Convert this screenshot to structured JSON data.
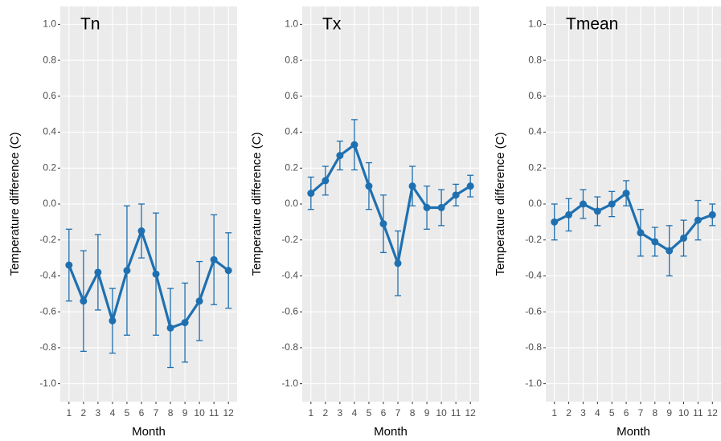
{
  "chart_data": [
    {
      "type": "line",
      "title": "Tn",
      "color": "#1f70b0",
      "grid": true,
      "categories": [
        "1",
        "2",
        "3",
        "4",
        "5",
        "6",
        "7",
        "8",
        "9",
        "10",
        "11",
        "12"
      ],
      "values": [
        -0.34,
        -0.54,
        -0.38,
        -0.65,
        -0.37,
        -0.15,
        -0.39,
        -0.69,
        -0.66,
        -0.54,
        -0.31,
        -0.37
      ],
      "errors": [
        0.2,
        0.28,
        0.21,
        0.18,
        0.36,
        0.15,
        0.34,
        0.22,
        0.22,
        0.22,
        0.25,
        0.21
      ],
      "xlabel": "Month",
      "ylabel": "Temperature difference (C)",
      "ylim": [
        -1.1,
        1.1
      ],
      "yticks": [
        {
          "value": -1,
          "label": "-1.0"
        },
        -0.8,
        -0.6,
        -0.4,
        -0.2,
        {
          "value": 0,
          "label": "0.0"
        },
        0.2,
        0.4,
        0.6,
        0.8,
        {
          "value": 1,
          "label": "1.0"
        }
      ]
    },
    {
      "type": "line",
      "title": "Tx",
      "color": "#1f70b0",
      "grid": true,
      "categories": [
        "1",
        "2",
        "3",
        "4",
        "5",
        "6",
        "7",
        "8",
        "9",
        "10",
        "11",
        "12"
      ],
      "values": [
        0.06,
        0.13,
        0.27,
        0.33,
        0.1,
        -0.11,
        -0.33,
        0.1,
        -0.02,
        -0.02,
        0.05,
        0.1
      ],
      "errors": [
        0.09,
        0.08,
        0.08,
        0.14,
        0.13,
        0.16,
        0.18,
        0.11,
        0.12,
        0.1,
        0.06,
        0.06
      ],
      "xlabel": "Month",
      "ylabel": "Temperature difference (C)",
      "ylim": [
        -1.1,
        1.1
      ],
      "yticks": [
        {
          "value": -1,
          "label": "-1.0"
        },
        -0.8,
        -0.6,
        -0.4,
        -0.2,
        {
          "value": 0,
          "label": "0.0"
        },
        0.2,
        0.4,
        0.6,
        0.8,
        {
          "value": 1,
          "label": "1.0"
        }
      ]
    },
    {
      "type": "line",
      "title": "Tmean",
      "color": "#1f70b0",
      "grid": true,
      "categories": [
        "1",
        "2",
        "3",
        "4",
        "5",
        "6",
        "7",
        "8",
        "9",
        "10",
        "11",
        "12"
      ],
      "values": [
        -0.1,
        -0.06,
        0.0,
        -0.04,
        0.0,
        0.06,
        -0.16,
        -0.21,
        -0.26,
        -0.19,
        -0.09,
        -0.06
      ],
      "errors": [
        0.1,
        0.09,
        0.08,
        0.08,
        0.07,
        0.07,
        0.13,
        0.08,
        0.14,
        0.1,
        0.11,
        0.06
      ],
      "xlabel": "Month",
      "ylabel": "Temperature difference (C)",
      "ylim": [
        -1.1,
        1.1
      ],
      "yticks": [
        {
          "value": -1,
          "label": "-1.0"
        },
        -0.8,
        -0.6,
        -0.4,
        -0.2,
        {
          "value": 0,
          "label": "0.0"
        },
        0.2,
        0.4,
        0.6,
        0.8,
        {
          "value": 1,
          "label": "1.0"
        }
      ]
    }
  ]
}
